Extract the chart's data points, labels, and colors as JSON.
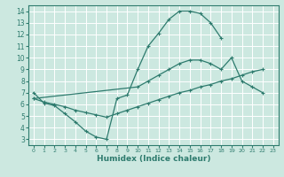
{
  "xlabel": "Humidex (Indice chaleur)",
  "xlim": [
    -0.5,
    23.5
  ],
  "ylim": [
    2.5,
    14.5
  ],
  "xticks": [
    0,
    1,
    2,
    3,
    4,
    5,
    6,
    7,
    8,
    9,
    10,
    11,
    12,
    13,
    14,
    15,
    16,
    17,
    18,
    19,
    20,
    21,
    22,
    23
  ],
  "yticks": [
    3,
    4,
    5,
    6,
    7,
    8,
    9,
    10,
    11,
    12,
    13,
    14
  ],
  "bg_color": "#cce8e0",
  "grid_color": "#b0d8d0",
  "line_color": "#2e7b6e",
  "line1_x": [
    0,
    1,
    2,
    3,
    4,
    5,
    6,
    7,
    8,
    9,
    10,
    11,
    12,
    13,
    14,
    15,
    16,
    17,
    18
  ],
  "line1_y": [
    7.0,
    6.1,
    5.9,
    5.2,
    4.5,
    3.7,
    3.2,
    3.0,
    6.5,
    6.8,
    9.0,
    11.0,
    12.1,
    13.3,
    14.0,
    14.0,
    13.8,
    13.0,
    11.7
  ],
  "line2_x": [
    0,
    1,
    2,
    3,
    4,
    5,
    6,
    7,
    8,
    9,
    10,
    11,
    12,
    13,
    14,
    15,
    16,
    17,
    18,
    19,
    20,
    21,
    22
  ],
  "line2_y": [
    6.5,
    6.2,
    6.0,
    5.8,
    5.5,
    5.3,
    5.1,
    4.9,
    5.2,
    5.5,
    5.8,
    6.1,
    6.4,
    6.7,
    7.0,
    7.2,
    7.5,
    7.7,
    8.0,
    8.2,
    8.5,
    8.8,
    9.0
  ],
  "line3_x": [
    0,
    10,
    11,
    12,
    13,
    14,
    15,
    16,
    17,
    18,
    19,
    20,
    21,
    22
  ],
  "line3_y": [
    6.5,
    7.5,
    8.0,
    8.5,
    9.0,
    9.5,
    9.8,
    9.8,
    9.5,
    9.0,
    10.0,
    8.0,
    7.5,
    7.0
  ],
  "xlabel_fontsize": 6.5,
  "tick_fontsize_x": 4.5,
  "tick_fontsize_y": 5.5,
  "lw": 0.9,
  "marker_size": 3.0
}
